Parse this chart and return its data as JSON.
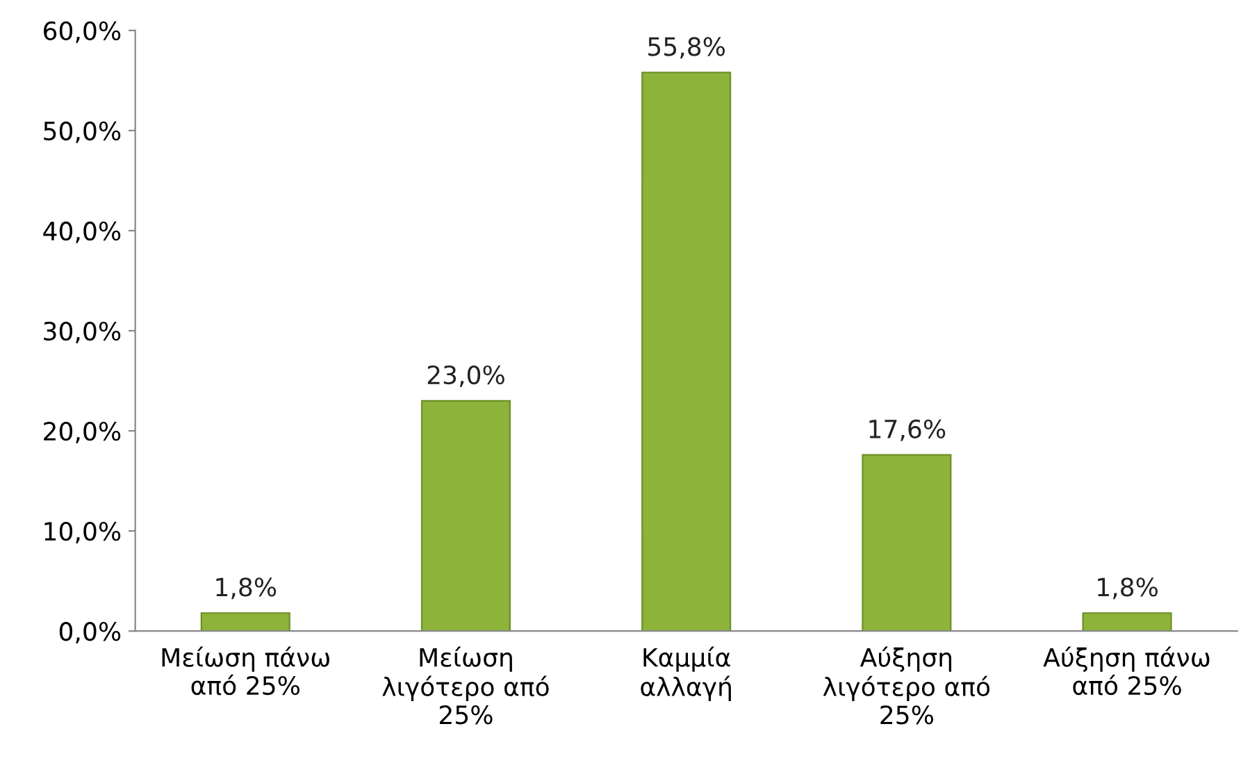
{
  "chart_data": {
    "type": "bar",
    "categories": [
      "Μείωση πάνω\nαπό 25%",
      "Μείωση\nλιγότερο από\n25%",
      "Καμμία\nαλλαγή",
      "Αύξηση\nλιγότερο από\n25%",
      "Αύξηση πάνω\nαπό 25%"
    ],
    "values": [
      1.8,
      23.0,
      55.8,
      17.6,
      1.8
    ],
    "value_labels": [
      "1,8%",
      "23,0%",
      "55,8%",
      "17,6%",
      "1,8%"
    ],
    "color": "#8db33a",
    "ylim": [
      0,
      60
    ],
    "yticks": [
      {
        "value": 0,
        "label": "0,0%"
      },
      {
        "value": 10,
        "label": "10,0%"
      },
      {
        "value": 20,
        "label": "20,0%"
      },
      {
        "value": 30,
        "label": "30,0%"
      },
      {
        "value": 40,
        "label": "40,0%"
      },
      {
        "value": 50,
        "label": "50,0%"
      },
      {
        "value": 60,
        "label": "60,0%"
      }
    ],
    "grid": false,
    "legend": false
  }
}
